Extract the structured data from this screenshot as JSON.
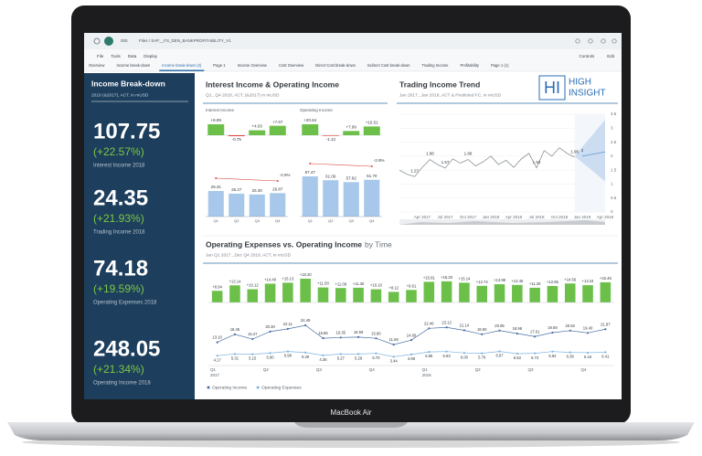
{
  "device_label": "MacBook Air",
  "toolbar": {
    "app_code": "000",
    "breadcrumb": "Files  /  SAP__FS_DEN_BANKPROFITABILITY_V1",
    "menu": [
      "File",
      "Tools",
      "Data",
      "Display"
    ],
    "actions": [
      "Controls",
      "Edit"
    ]
  },
  "tabs": [
    "Overview",
    "Income break-down",
    "Income break-down (2)",
    "Page 1",
    "Income Overview",
    "Cost Overview",
    "Direct Cost break-down",
    "Indirect Cost break-down",
    "Trading Income",
    "Profitability",
    "Page 1 (1)"
  ],
  "active_tab": 2,
  "sidebar": {
    "title": "Income Break-down",
    "subtitle": "2018 (&2017), ACT, in mUSD",
    "kpis": [
      {
        "value": "107.75",
        "change": "(+22.57%)",
        "label": "Interest Income 2018"
      },
      {
        "value": "24.35",
        "change": "(+21.93%)",
        "label": "Trading Income 2018"
      },
      {
        "value": "74.18",
        "change": "(+19.59%)",
        "label": "Operating Expenses 2018"
      },
      {
        "value": "248.05",
        "change": "(+21.34%)",
        "label": "Operating Income 2018"
      }
    ]
  },
  "quarterly": {
    "title": "Interest Income & Operating Income",
    "subtitle": "Q1...Q4 2018, ACT, (&2017) in mUSD",
    "charts": [
      {
        "type": "variance",
        "title": "Interest Income",
        "categories": [
          "Q1",
          "Q2",
          "Q3",
          "Q4"
        ],
        "values": [
          8.89,
          -0.75,
          4.03,
          7.67
        ],
        "value_labels": [
          "+8.89",
          "-0.75",
          "+4.03",
          "+7.67"
        ],
        "positive_color": "#6cc04a",
        "negative_color": "#e0443c"
      },
      {
        "type": "variance",
        "title": "Operating Income",
        "categories": [
          "Q1",
          "Q2",
          "Q3",
          "Q4"
        ],
        "values": [
          20.64,
          -1.13,
          7.99,
          16.51
        ],
        "value_labels": [
          "+20.64",
          "-1.13",
          "+7.99",
          "+16.51"
        ],
        "positive_color": "#6cc04a",
        "negative_color": "#e0443c"
      },
      {
        "type": "bar",
        "categories": [
          "Q1",
          "Q2",
          "Q3",
          "Q4"
        ],
        "values": [
          29.31,
          26.27,
          25.3,
          26.87
        ],
        "value_labels": [
          "29.31",
          "26.27",
          "25.30",
          "26.87"
        ],
        "color": "#a7c8ea",
        "annotation": "-2.9%",
        "annotation_color": "#e0443c"
      },
      {
        "type": "bar",
        "categories": [
          "Q1",
          "Q2",
          "Q3",
          "Q4"
        ],
        "values": [
          67.47,
          61.06,
          57.82,
          61.7
        ],
        "value_labels": [
          "67.47",
          "61.06",
          "57.82",
          "61.70"
        ],
        "color": "#a7c8ea",
        "annotation": "-2.9%",
        "annotation_color": "#e0443c"
      }
    ]
  },
  "trading": {
    "type": "line",
    "title": "Trading Income Trend",
    "subtitle": "Jan 2017...Jan 2018, ACT & Predicted FC, in mUSD",
    "logo": {
      "mark": "HI",
      "lines": [
        "HIGH",
        "INSIGHT"
      ]
    },
    "categories": [
      null,
      null,
      null,
      "Apr 2017",
      null,
      null,
      "Jul 2017",
      null,
      null,
      "Oct 2017",
      null,
      null,
      "Jan 2018",
      null,
      null,
      "Apr 2018",
      null,
      null,
      "Jul 2018",
      null,
      null,
      "Oct 2018",
      null,
      null,
      "Jan 2019",
      null,
      null,
      "Apr 2019"
    ],
    "series": [
      {
        "color": "#7d8489",
        "values": [
          1.5,
          1.35,
          1.27,
          1.6,
          1.88,
          1.7,
          1.57,
          1.9,
          1.75,
          1.88,
          1.65,
          1.8,
          2.0,
          1.7,
          1.85,
          1.6,
          1.9,
          2.1,
          1.58,
          2.2,
          2.0,
          2.3,
          2.1,
          1.96,
          null,
          null,
          null,
          null
        ],
        "value_labels": [
          null,
          null,
          "1.27",
          null,
          "1.88",
          null,
          "1.57",
          null,
          null,
          "1.88",
          null,
          null,
          null,
          null,
          null,
          null,
          null,
          null,
          "1.58",
          null,
          null,
          null,
          null,
          "1.96",
          null,
          null,
          null,
          null
        ]
      },
      {
        "color": "#4f8fcf",
        "values": [
          null,
          null,
          null,
          null,
          null,
          null,
          null,
          null,
          null,
          null,
          null,
          null,
          null,
          null,
          null,
          null,
          null,
          null,
          null,
          null,
          null,
          null,
          null,
          null,
          2,
          2.05,
          2.1,
          2.15
        ],
        "value_labels": [
          null,
          null,
          null,
          null,
          null,
          null,
          null,
          null,
          null,
          null,
          null,
          null,
          null,
          null,
          null,
          null,
          null,
          null,
          null,
          null,
          null,
          null,
          null,
          null,
          "2",
          null,
          null,
          null
        ]
      }
    ],
    "ylim": [
      0,
      3.5
    ],
    "yticks": [
      0,
      0.5,
      1,
      1.5,
      2,
      2.5,
      3,
      3.5
    ],
    "grid": true
  },
  "timeline": {
    "type": "combo",
    "title": "Operating Expenses vs. Operating Income",
    "title_suffix": "by Time",
    "subtitle": "Jan Q1 2017...Dec Q4 2018, ACT, in mUSD",
    "categories": [
      "Q1",
      null,
      null,
      "Q2",
      null,
      null,
      "Q3",
      null,
      null,
      "Q4",
      null,
      null,
      "Q1",
      null,
      null,
      "Q2",
      null,
      null,
      "Q3",
      null,
      null,
      "Q4",
      null
    ],
    "year_labels": [
      "2017",
      null,
      null,
      null,
      null,
      null,
      null,
      null,
      null,
      null,
      null,
      null,
      "2018",
      null,
      null,
      null,
      null,
      null,
      null,
      null,
      null,
      null,
      null
    ],
    "variance": {
      "color": "#6cc04a",
      "values": [
        8.94,
        13.14,
        10.12,
        14.4,
        15.13,
        18.2,
        11.5,
        11.08,
        11.3,
        10.1,
        8.12,
        9.61,
        15.81,
        16.2,
        15.14,
        12.74,
        13.98,
        13.45,
        11.28,
        12.65,
        14.56,
        13.24,
        15.46
      ],
      "value_labels": [
        "+8.94",
        "+13.14",
        "+10.12",
        "+14.40",
        "+15.13",
        "+18.20",
        "+11.50",
        "+11.08",
        "+11.30",
        "+10.10",
        "+8.12",
        "+9.61",
        "+15.81",
        "+16.20",
        "+15.14",
        "+12.74",
        "+13.98",
        "+13.45",
        "+11.28",
        "+12.65",
        "+14.56",
        "+13.24",
        "+15.46"
      ]
    },
    "series": [
      {
        "name": "Operating Income",
        "color": "#4a6fa5",
        "values": [
          13.1,
          18.45,
          15.27,
          20.3,
          22.11,
          24.49,
          15.86,
          16.35,
          16.59,
          15.8,
          11.56,
          14.6,
          22.46,
          23.13,
          21.14,
          18.5,
          20.95,
          18.98,
          17.01,
          19.59,
          20.92,
          19.4,
          21.87
        ],
        "value_labels": [
          "13.10",
          "18.45",
          "15.27",
          "20.30",
          "22.11",
          "24.49",
          "15.86",
          "16.35",
          "16.59",
          "15.80",
          "11.56",
          "14.60",
          "22.46",
          "23.13",
          "21.14",
          "18.50",
          "20.95",
          "18.98",
          "17.01",
          "19.59",
          "20.92",
          "19.40",
          "21.87"
        ]
      },
      {
        "name": "Operating Expenses",
        "color": "#7fb3e0",
        "values": [
          4.17,
          5.31,
          5.15,
          5.9,
          6.98,
          6.29,
          4.36,
          5.27,
          5.29,
          5.7,
          3.44,
          4.99,
          6.65,
          6.93,
          6.0,
          5.76,
          6.97,
          5.53,
          5.73,
          6.94,
          6.36,
          6.16,
          6.41
        ],
        "value_labels": [
          "4.17",
          "5.31",
          "5.15",
          "5.90",
          "6.98",
          "6.29",
          "4.36",
          "5.27",
          "5.29",
          "5.70",
          "3.44",
          "4.99",
          "6.65",
          "6.93",
          "6.00",
          "5.76",
          "6.97",
          "5.53",
          "5.73",
          "6.94",
          "6.36",
          "6.16",
          "6.41"
        ]
      }
    ]
  }
}
